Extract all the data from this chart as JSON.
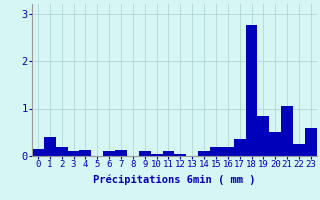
{
  "hours": [
    0,
    1,
    2,
    3,
    4,
    5,
    6,
    7,
    8,
    9,
    10,
    11,
    12,
    13,
    14,
    15,
    16,
    17,
    18,
    19,
    20,
    21,
    22,
    23
  ],
  "values": [
    0.15,
    0.4,
    0.2,
    0.1,
    0.12,
    0.0,
    0.1,
    0.12,
    0.0,
    0.1,
    0.05,
    0.1,
    0.05,
    0.0,
    0.1,
    0.2,
    0.2,
    0.35,
    2.75,
    0.85,
    0.5,
    1.05,
    0.25,
    0.6
  ],
  "bar_color": "#0000bb",
  "bg_color": "#d6f5f5",
  "grid_color": "#aacfcf",
  "xlabel": "Précipitations 6min ( mm )",
  "ylim": [
    0,
    3.2
  ],
  "yticks": [
    0,
    1,
    2,
    3
  ],
  "xlabel_fontsize": 7.5,
  "tick_fontsize": 6.5
}
